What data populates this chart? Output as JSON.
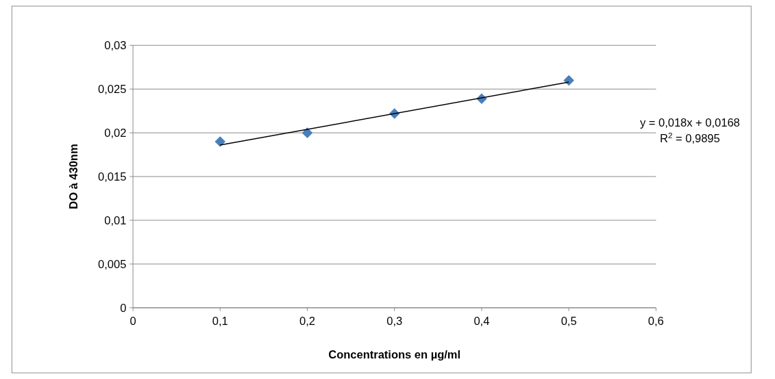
{
  "chart_data": {
    "type": "scatter",
    "xlabel": "Concentrations en µg/ml",
    "ylabel": "DO à 430nm",
    "x": [
      0.1,
      0.2,
      0.3,
      0.4,
      0.5
    ],
    "series": [
      {
        "color": "#4a7ebb",
        "marker": "diamond",
        "values": [
          0.019,
          0.02,
          0.0222,
          0.0239,
          0.026
        ]
      },
      {
        "type": "line",
        "color": "#000000",
        "marker": "none",
        "line_style": "solid",
        "x": [
          0.1,
          0.5
        ],
        "values": [
          0.0186,
          0.0258
        ]
      }
    ],
    "annotations": [
      "y = 0,018x + 0,0168",
      "R$^{2}$ = 0,9895"
    ],
    "xlim": [
      0,
      0.6
    ],
    "xticks": [
      0,
      {
        "value": 0.1,
        "label": "0,1"
      },
      {
        "value": 0.2,
        "label": "0,2"
      },
      {
        "value": 0.3,
        "label": "0,3"
      },
      {
        "value": 0.4,
        "label": "0,4"
      },
      {
        "value": 0.5,
        "label": "0,5"
      },
      {
        "value": 0.6,
        "label": "0,6"
      }
    ],
    "ylim": [
      0,
      0.03
    ],
    "yticks": [
      0,
      {
        "value": 0.005,
        "label": "0,005"
      },
      {
        "value": 0.01,
        "label": "0,01"
      },
      {
        "value": 0.015,
        "label": "0,015"
      },
      {
        "value": 0.02,
        "label": "0,02"
      },
      {
        "value": 0.025,
        "label": "0,025"
      },
      {
        "value": 0.03,
        "label": "0,03"
      }
    ],
    "grid": "y"
  }
}
